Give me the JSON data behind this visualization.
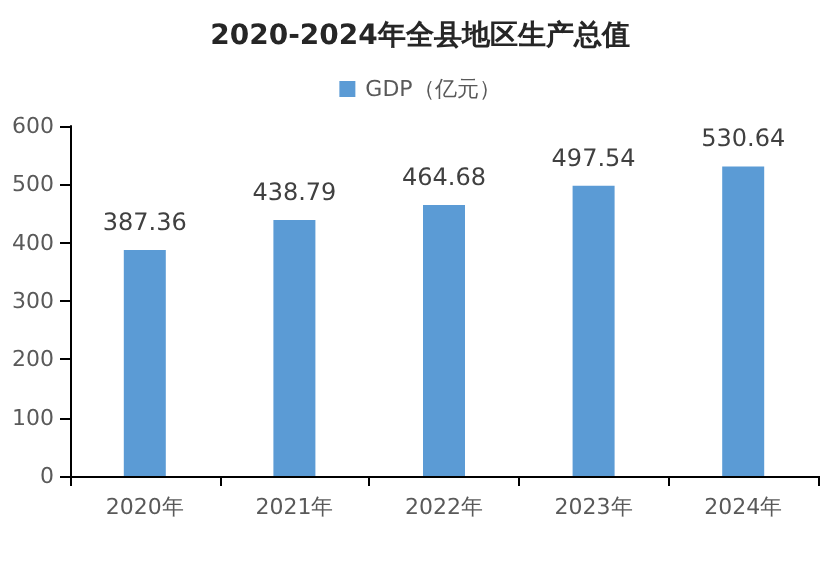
{
  "chart_data": {
    "type": "bar",
    "title": "2020-2024年全县地区生产总值",
    "categories": [
      "2020年",
      "2021年",
      "2022年",
      "2023年",
      "2024年"
    ],
    "series": [
      {
        "name": "GDP（亿元）",
        "color": "#5b9bd5",
        "values": [
          387.36,
          438.79,
          464.68,
          497.54,
          530.64
        ]
      }
    ],
    "ylim": [
      0,
      600
    ],
    "yticks": [
      0,
      100,
      200,
      300,
      400,
      500,
      600
    ],
    "grid": false,
    "legend": "top",
    "data_labels": true
  }
}
